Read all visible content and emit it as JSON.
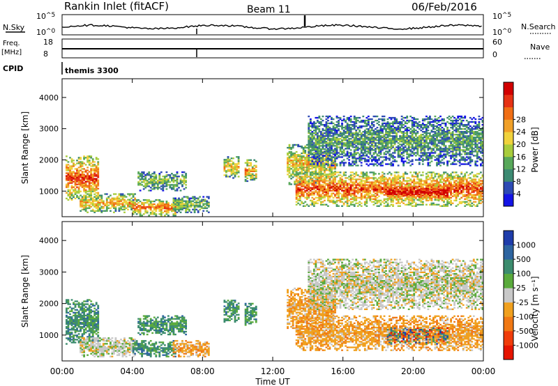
{
  "header": {
    "station": "Rankin Inlet (fitACF)",
    "beam": "Beam 11",
    "date": "06/Feb/2016"
  },
  "sky_panel": {
    "left_label": "N.Sky",
    "right_label": "N.Search",
    "left_ticks": [
      {
        "base": "10",
        "exp": "^5",
        "value": 100000
      },
      {
        "base": "10",
        "exp": "^0",
        "value": 1
      }
    ],
    "right_ticks": [
      {
        "base": "10",
        "exp": "^5",
        "value": 100000
      },
      {
        "base": "10",
        "exp": "^0",
        "value": 1
      }
    ]
  },
  "freq_panel": {
    "left_label_top": "Freq.",
    "left_label_unit": "[MHz]",
    "right_label": "Nave",
    "left_ticks": [
      "18",
      "8"
    ],
    "right_ticks": [
      "60",
      "0"
    ]
  },
  "cpid": {
    "label": "CPID",
    "program": "themis 3300"
  },
  "chart_data": [
    {
      "type": "heatmap",
      "name_key": "power",
      "ylabel": "Slant Range [km]",
      "ylim": [
        180,
        4600
      ],
      "yticks": [
        1000,
        2000,
        3000,
        4000
      ],
      "xlim": [
        0,
        24
      ],
      "colorbar": {
        "label": "Power [dB]",
        "tick_labels": [
          "4",
          "8",
          "12",
          "16",
          "20",
          "24",
          "28"
        ],
        "colors": [
          "#1414e6",
          "#2d4ab4",
          "#3c8a72",
          "#58a85a",
          "#a8cc3c",
          "#f0d23c",
          "#f0a028",
          "#f06e14",
          "#e63214",
          "#d20000"
        ]
      },
      "echo_bands": [
        {
          "start_h": 0.2,
          "end_h": 2.1,
          "r_min": 700,
          "r_max": 2100,
          "level": 0.75
        },
        {
          "start_h": 1.0,
          "end_h": 4.2,
          "r_min": 300,
          "r_max": 900,
          "level": 0.6
        },
        {
          "start_h": 4.0,
          "end_h": 6.4,
          "r_min": 200,
          "r_max": 700,
          "level": 0.7
        },
        {
          "start_h": 4.3,
          "end_h": 7.0,
          "r_min": 1000,
          "r_max": 1600,
          "level": 0.35
        },
        {
          "start_h": 6.3,
          "end_h": 8.3,
          "r_min": 300,
          "r_max": 800,
          "level": 0.4
        },
        {
          "start_h": 9.2,
          "end_h": 10.0,
          "r_min": 1400,
          "r_max": 2100,
          "level": 0.55
        },
        {
          "start_h": 10.4,
          "end_h": 11.0,
          "r_min": 1300,
          "r_max": 2000,
          "level": 0.6
        },
        {
          "start_h": 12.8,
          "end_h": 15.5,
          "r_min": 1200,
          "r_max": 2500,
          "level": 0.55
        },
        {
          "start_h": 13.3,
          "end_h": 24.0,
          "r_min": 500,
          "r_max": 1600,
          "level": 0.75
        },
        {
          "start_h": 14.0,
          "end_h": 24.0,
          "r_min": 1800,
          "r_max": 3400,
          "level": 0.3
        },
        {
          "start_h": 18.5,
          "end_h": 22.0,
          "r_min": 700,
          "r_max": 1200,
          "level": 0.95
        }
      ]
    },
    {
      "type": "heatmap",
      "name_key": "velocity",
      "ylabel": "Slant Range [km]",
      "ylim": [
        180,
        4600
      ],
      "yticks": [
        1000,
        2000,
        3000,
        4000
      ],
      "xlim": [
        0,
        24
      ],
      "colorbar": {
        "label": "Velocity [m s⁻¹]",
        "tick_labels": [
          "1000",
          "500",
          "100",
          "25",
          "-25",
          "-100",
          "-500",
          "-1000"
        ],
        "colors": [
          "#1e3caa",
          "#2d64a0",
          "#3c8c6e",
          "#5aaa3c",
          "#c8c8c8",
          "#f0a01e",
          "#f07814",
          "#f03c0a",
          "#e61400"
        ]
      },
      "echo_bands": [
        {
          "start_h": 0.2,
          "end_h": 2.1,
          "r_min": 700,
          "r_max": 2100,
          "mode": "positive"
        },
        {
          "start_h": 1.0,
          "end_h": 4.2,
          "r_min": 300,
          "r_max": 900,
          "mode": "grey"
        },
        {
          "start_h": 4.0,
          "end_h": 6.4,
          "r_min": 300,
          "r_max": 800,
          "mode": "positive"
        },
        {
          "start_h": 4.3,
          "end_h": 7.0,
          "r_min": 1000,
          "r_max": 1600,
          "mode": "positive"
        },
        {
          "start_h": 6.3,
          "end_h": 8.3,
          "r_min": 300,
          "r_max": 800,
          "mode": "negative"
        },
        {
          "start_h": 9.2,
          "end_h": 10.0,
          "r_min": 1400,
          "r_max": 2100,
          "mode": "positive"
        },
        {
          "start_h": 10.4,
          "end_h": 11.0,
          "r_min": 1300,
          "r_max": 2000,
          "mode": "positive"
        },
        {
          "start_h": 12.8,
          "end_h": 15.5,
          "r_min": 1200,
          "r_max": 2500,
          "mode": "negative"
        },
        {
          "start_h": 13.3,
          "end_h": 24.0,
          "r_min": 500,
          "r_max": 1600,
          "mode": "negative"
        },
        {
          "start_h": 14.0,
          "end_h": 24.0,
          "r_min": 1800,
          "r_max": 3400,
          "mode": "grey"
        },
        {
          "start_h": 18.5,
          "end_h": 22.0,
          "r_min": 700,
          "r_max": 1200,
          "mode": "mixed"
        }
      ]
    }
  ],
  "time_axis": {
    "tick_labels": [
      "00:00",
      "04:00",
      "08:00",
      "12:00",
      "16:00",
      "20:00",
      "00:00"
    ],
    "tick_hours": [
      0,
      4,
      8,
      12,
      16,
      20,
      24
    ],
    "label": "Time UT"
  }
}
